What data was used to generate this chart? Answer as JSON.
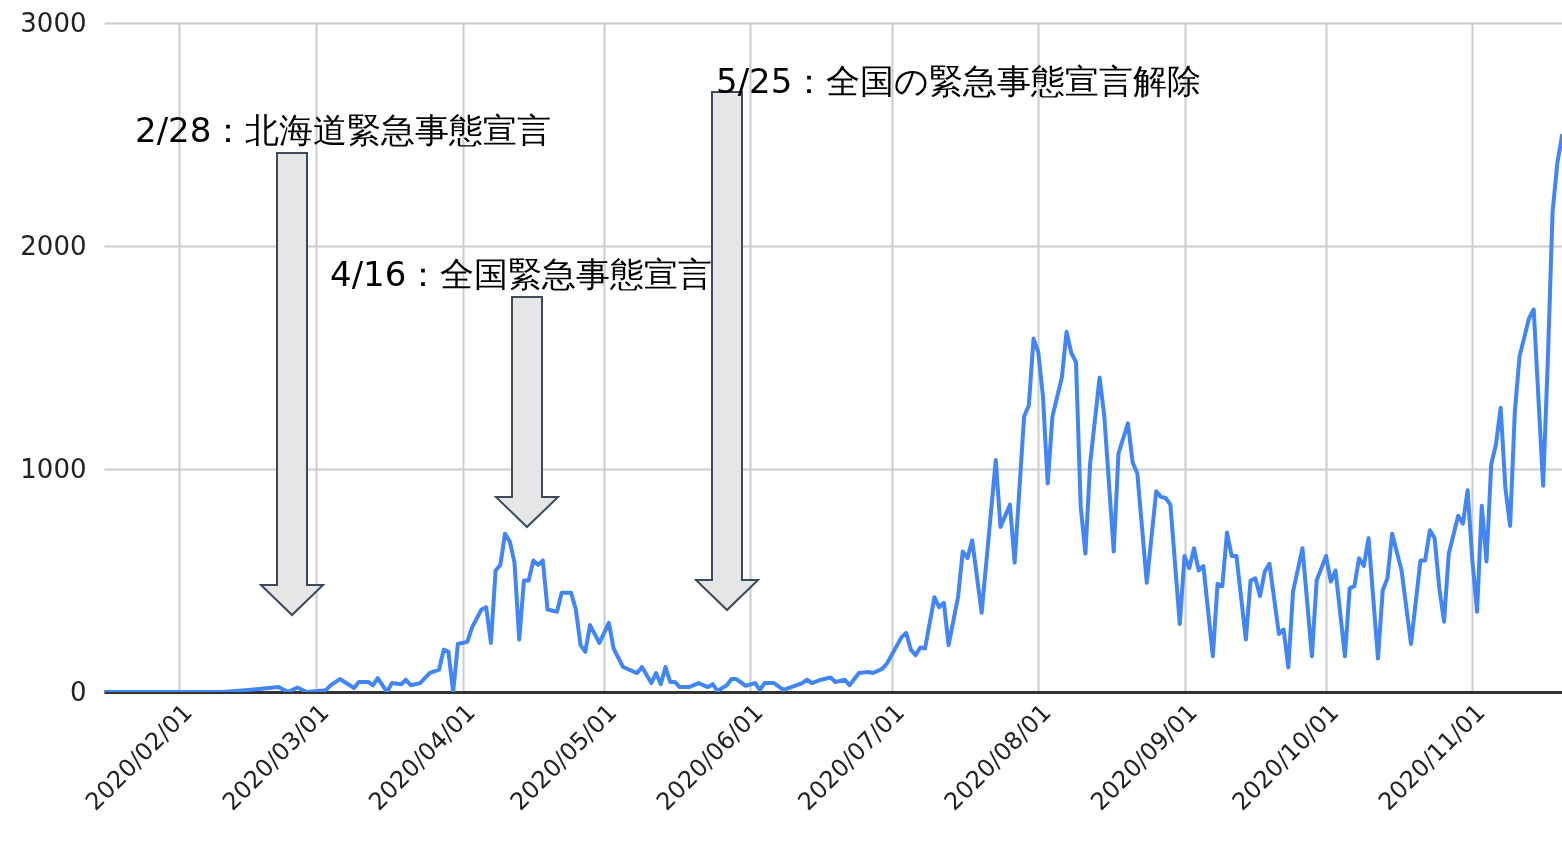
{
  "chart_data": {
    "type": "line",
    "annotations": [
      "2/28：北海道緊急事態宣言",
      "4/16：全国緊急事態宣言",
      "5/25：全国の緊急事態宣言解除"
    ],
    "x": [
      "2020-01-16",
      "2020-02-10",
      "2020-02-15",
      "2020-02-22",
      "2020-02-24",
      "2020-02-26",
      "2020-02-28",
      "2020-03-03",
      "2020-03-04",
      "2020-03-06",
      "2020-03-09",
      "2020-03-10",
      "2020-03-12",
      "2020-03-13",
      "2020-03-14",
      "2020-03-16",
      "2020-03-17",
      "2020-03-19",
      "2020-03-20",
      "2020-03-21",
      "2020-03-23",
      "2020-03-25",
      "2020-03-27",
      "2020-03-28",
      "2020-03-29",
      "2020-03-30",
      "2020-03-31",
      "2020-04-02",
      "2020-04-03",
      "2020-04-05",
      "2020-04-06",
      "2020-04-07",
      "2020-04-08",
      "2020-04-09",
      "2020-04-10",
      "2020-04-11",
      "2020-04-12",
      "2020-04-13",
      "2020-04-14",
      "2020-04-15",
      "2020-04-16",
      "2020-04-17",
      "2020-04-18",
      "2020-04-19",
      "2020-04-21",
      "2020-04-22",
      "2020-04-24",
      "2020-04-25",
      "2020-04-26",
      "2020-04-27",
      "2020-04-28",
      "2020-04-30",
      "2020-05-02",
      "2020-05-03",
      "2020-05-05",
      "2020-05-08",
      "2020-05-09",
      "2020-05-11",
      "2020-05-12",
      "2020-05-13",
      "2020-05-14",
      "2020-05-15",
      "2020-05-16",
      "2020-05-17",
      "2020-05-19",
      "2020-05-21",
      "2020-05-23",
      "2020-05-24",
      "2020-05-25",
      "2020-05-27",
      "2020-05-28",
      "2020-05-29",
      "2020-05-31",
      "2020-06-02",
      "2020-06-03",
      "2020-06-04",
      "2020-06-06",
      "2020-06-08",
      "2020-06-12",
      "2020-06-13",
      "2020-06-14",
      "2020-06-16",
      "2020-06-18",
      "2020-06-19",
      "2020-06-21",
      "2020-06-22",
      "2020-06-24",
      "2020-06-26",
      "2020-06-27",
      "2020-06-29",
      "2020-06-30",
      "2020-07-03",
      "2020-07-04",
      "2020-07-05",
      "2020-07-06",
      "2020-07-07",
      "2020-07-08",
      "2020-07-10",
      "2020-07-11",
      "2020-07-12",
      "2020-07-13",
      "2020-07-15",
      "2020-07-16",
      "2020-07-17",
      "2020-07-18",
      "2020-07-20",
      "2020-07-23",
      "2020-07-24",
      "2020-07-26",
      "2020-07-27",
      "2020-07-29",
      "2020-07-30",
      "2020-07-31",
      "2020-08-01",
      "2020-08-02",
      "2020-08-03",
      "2020-08-04",
      "2020-08-06",
      "2020-08-07",
      "2020-08-08",
      "2020-08-09",
      "2020-08-10",
      "2020-08-11",
      "2020-08-12",
      "2020-08-14",
      "2020-08-15",
      "2020-08-17",
      "2020-08-18",
      "2020-08-20",
      "2020-08-21",
      "2020-08-22",
      "2020-08-24",
      "2020-08-26",
      "2020-08-27",
      "2020-08-28",
      "2020-08-29",
      "2020-08-31",
      "2020-09-01",
      "2020-09-02",
      "2020-09-03",
      "2020-09-04",
      "2020-09-05",
      "2020-09-07",
      "2020-09-08",
      "2020-09-09",
      "2020-09-10",
      "2020-09-11",
      "2020-09-12",
      "2020-09-14",
      "2020-09-15",
      "2020-09-16",
      "2020-09-17",
      "2020-09-18",
      "2020-09-19",
      "2020-09-21",
      "2020-09-22",
      "2020-09-23",
      "2020-09-24",
      "2020-09-26",
      "2020-09-28",
      "2020-09-29",
      "2020-10-01",
      "2020-10-02",
      "2020-10-03",
      "2020-10-05",
      "2020-10-06",
      "2020-10-07",
      "2020-10-08",
      "2020-10-09",
      "2020-10-10",
      "2020-10-12",
      "2020-10-13",
      "2020-10-14",
      "2020-10-15",
      "2020-10-17",
      "2020-10-19",
      "2020-10-21",
      "2020-10-22",
      "2020-10-23",
      "2020-10-24",
      "2020-10-25",
      "2020-10-26",
      "2020-10-27",
      "2020-10-29",
      "2020-10-30",
      "2020-10-31",
      "2020-11-01",
      "2020-11-02",
      "2020-11-03",
      "2020-11-04",
      "2020-11-05",
      "2020-11-06",
      "2020-11-07",
      "2020-11-08",
      "2020-11-09",
      "2020-11-10",
      "2020-11-11",
      "2020-11-13",
      "2020-11-14",
      "2020-11-16",
      "2020-11-17",
      "2020-11-18",
      "2020-11-19",
      "2020-11-20"
    ],
    "series": [
      {
        "color": "#4285f4",
        "values": [
          0,
          0,
          8,
          22,
          0,
          20,
          0,
          8,
          30,
          58,
          18,
          45,
          45,
          30,
          62,
          0,
          40,
          35,
          55,
          30,
          40,
          85,
          100,
          190,
          180,
          0,
          215,
          225,
          290,
          370,
          380,
          220,
          545,
          570,
          710,
          675,
          580,
          235,
          500,
          500,
          590,
          570,
          590,
          370,
          360,
          445,
          445,
          370,
          210,
          180,
          300,
          220,
          310,
          195,
          112,
          85,
          112,
          40,
          85,
          35,
          112,
          45,
          45,
          22,
          22,
          40,
          22,
          35,
          5,
          30,
          58,
          58,
          28,
          40,
          10,
          40,
          40,
          10,
          40,
          55,
          40,
          55,
          65,
          45,
          55,
          30,
          85,
          90,
          85,
          105,
          130,
          245,
          265,
          190,
          165,
          200,
          195,
          425,
          380,
          400,
          210,
          425,
          630,
          600,
          680,
          355,
          1040,
          740,
          840,
          580,
          1235,
          1285,
          1585,
          1525,
          1325,
          935,
          1235,
          1410,
          1615,
          1520,
          1480,
          830,
          620,
          1025,
          1410,
          1235,
          630,
          1070,
          1205,
          1030,
          980,
          490,
          900,
          875,
          870,
          840,
          305,
          610,
          555,
          645,
          545,
          565,
          160,
          485,
          475,
          715,
          610,
          610,
          235,
          500,
          510,
          430,
          540,
          575,
          260,
          280,
          110,
          450,
          645,
          160,
          500,
          610,
          495,
          545,
          160,
          465,
          475,
          600,
          565,
          690,
          150,
          455,
          510,
          710,
          545,
          215,
          590,
          590,
          725,
          690,
          465,
          315,
          620,
          790,
          755,
          905,
          590,
          360,
          835,
          585,
          1020,
          1110,
          1275,
          915,
          745,
          1255,
          1505,
          1675,
          1715,
          925,
          1490,
          2150,
          2370,
          2495
        ]
      }
    ],
    "xlim": [
      "2020-01-16",
      "2020-11-20"
    ],
    "xticks": [
      {
        "value": "2020-02-01",
        "label": "2020/02/01"
      },
      {
        "value": "2020-03-01",
        "label": "2020/03/01"
      },
      {
        "value": "2020-04-01",
        "label": "2020/04/01"
      },
      {
        "value": "2020-05-01",
        "label": "2020/05/01"
      },
      {
        "value": "2020-06-01",
        "label": "2020/06/01"
      },
      {
        "value": "2020-07-01",
        "label": "2020/07/01"
      },
      {
        "value": "2020-08-01",
        "label": "2020/08/01"
      },
      {
        "value": "2020-09-01",
        "label": "2020/09/01"
      },
      {
        "value": "2020-10-01",
        "label": "2020/10/01"
      },
      {
        "value": "2020-11-01",
        "label": "2020/11/01"
      }
    ],
    "ylim": [
      0,
      3000
    ],
    "yticks": [
      0,
      1000,
      2000,
      3000
    ],
    "grid": true,
    "marker": "none",
    "line_style": "solid"
  }
}
